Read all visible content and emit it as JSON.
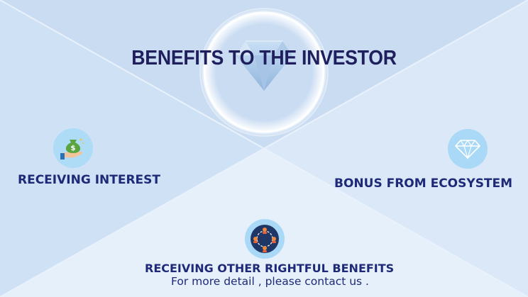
{
  "slide": {
    "title": "BENEFITS TO THE INVESTOR",
    "benefits": [
      {
        "label": "RECEIVING INTEREST",
        "icon": "money-bag-hand-icon"
      },
      {
        "label": "BONUS FROM ECOSYSTEM",
        "icon": "diamond-icon"
      },
      {
        "label": "RECEIVING OTHER RIGHTFUL BENEFITS",
        "icon": "people-network-icon"
      }
    ],
    "contact_text": "For more detail , please contact us ."
  },
  "colors": {
    "title": "#1f1f5e",
    "labels": "#1e2a78",
    "background_light": "#e4eefa",
    "background_mid": "#c7dbf2",
    "icon_circle": "#a9d8f5"
  }
}
